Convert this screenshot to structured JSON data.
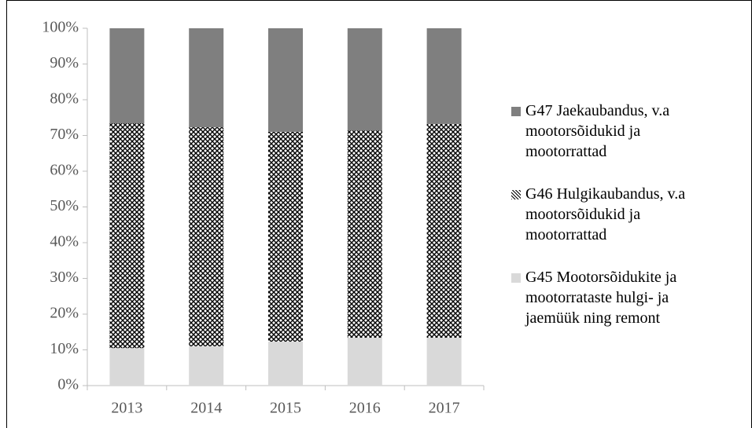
{
  "chart_data": {
    "type": "stacked_bar_100",
    "categories": [
      "2013",
      "2014",
      "2015",
      "2016",
      "2017"
    ],
    "series": [
      {
        "name": "G45 Mootorsõidukite ja mootorrataste hulgi- ja jaemüük ning remont",
        "color": "#d9d9d9",
        "values": [
          10.5,
          11.0,
          12.3,
          13.4,
          13.4
        ]
      },
      {
        "name": "G46 Hulgikaubandus, v.a mootorsõidukid ja mootorrattad",
        "color": "#000000",
        "hatch": true,
        "values": [
          62.9,
          61.3,
          58.7,
          58.0,
          59.8
        ]
      },
      {
        "name": "G47 Jaekaubandus, v.a mootorsõidukid ja mootorrattad",
        "color": "#7f7f7f",
        "values": [
          26.6,
          27.7,
          29.0,
          28.6,
          26.8
        ]
      }
    ],
    "ylim": [
      0,
      100
    ],
    "yticks": [
      {
        "value": 0,
        "label": "0%"
      },
      {
        "value": 10,
        "label": "10%"
      },
      {
        "value": 20,
        "label": "20%"
      },
      {
        "value": 30,
        "label": "30%"
      },
      {
        "value": 40,
        "label": "40%"
      },
      {
        "value": 50,
        "label": "50%"
      },
      {
        "value": 60,
        "label": "60%"
      },
      {
        "value": 70,
        "label": "70%"
      },
      {
        "value": 80,
        "label": "80%"
      },
      {
        "value": 90,
        "label": "90%"
      },
      {
        "value": 100,
        "label": "100%"
      }
    ],
    "legend": "right"
  }
}
